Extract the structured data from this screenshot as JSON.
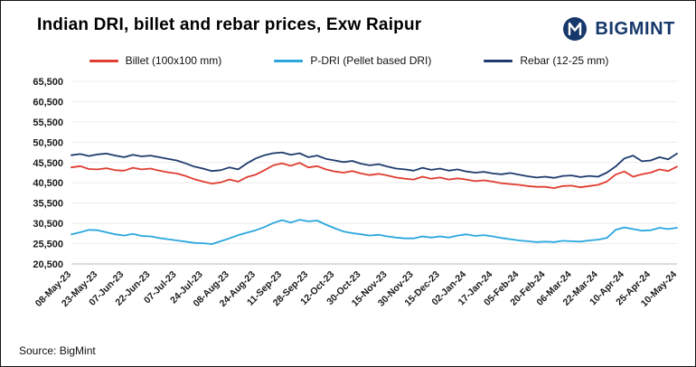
{
  "header": {
    "title": "Indian DRI, billet and rebar prices, Exw Raipur",
    "brand": "BIGMINT",
    "brand_color": "#17386b"
  },
  "legend": [
    {
      "label": "Billet (100x100 mm)",
      "color": "#e03c31"
    },
    {
      "label": "P-DRI (Pellet based DRI)",
      "color": "#2aa7de"
    },
    {
      "label": "Rebar (12-25 mm)",
      "color": "#1f3b6e"
    }
  ],
  "footer": {
    "source": "Source: BigMint"
  },
  "chart_data": {
    "type": "line",
    "title": "Indian DRI, billet and rebar prices, Exw Raipur",
    "xlabel": "",
    "ylabel": "",
    "ylim": [
      20500,
      65500
    ],
    "y_ticks": [
      20500,
      25500,
      30500,
      35500,
      40500,
      45500,
      50500,
      55500,
      60500,
      65500
    ],
    "grid": true,
    "legend_position": "top",
    "x_tick_labels": [
      "08-May-23",
      "23-May-23",
      "07-Jun-23",
      "22-Jun-23",
      "07-Jul-23",
      "24-Jul-23",
      "08-Aug-23",
      "24-Aug-23",
      "11-Sep-23",
      "28-Sep-23",
      "12-Oct-23",
      "30-Oct-23",
      "15-Nov-23",
      "30-Nov-23",
      "15-Dec-23",
      "02-Jan-24",
      "17-Jan-24",
      "05-Feb-24",
      "20-Feb-24",
      "06-Mar-24",
      "22-Mar-24",
      "10-Apr-24",
      "25-Apr-24",
      "10-May-24"
    ],
    "series": [
      {
        "name": "Billet (100x100 mm)",
        "color": "#e03c31",
        "values": [
          44300,
          44600,
          43900,
          43800,
          44100,
          43600,
          43500,
          44200,
          43800,
          44000,
          43500,
          43100,
          42800,
          42200,
          41400,
          40800,
          40300,
          40600,
          41300,
          40800,
          41900,
          42500,
          43600,
          44800,
          45300,
          44700,
          45400,
          44300,
          44600,
          43800,
          43300,
          43000,
          43400,
          42800,
          42400,
          42700,
          42300,
          41800,
          41500,
          41300,
          42000,
          41500,
          41800,
          41300,
          41600,
          41300,
          40900,
          41100,
          40800,
          40400,
          40200,
          40000,
          39700,
          39500,
          39500,
          39200,
          39700,
          39800,
          39400,
          39700,
          40000,
          40800,
          42500,
          43300,
          42000,
          42600,
          43000,
          43800,
          43400,
          44500
        ]
      },
      {
        "name": "P-DRI (Pellet based DRI)",
        "color": "#2aa7de",
        "values": [
          27800,
          28300,
          28900,
          28800,
          28300,
          27800,
          27500,
          27900,
          27400,
          27300,
          26900,
          26600,
          26300,
          26000,
          25700,
          25600,
          25400,
          26100,
          26800,
          27600,
          28200,
          28800,
          29600,
          30600,
          31300,
          30700,
          31400,
          31000,
          31200,
          30200,
          29300,
          28500,
          28100,
          27800,
          27500,
          27700,
          27300,
          27000,
          26800,
          26800,
          27300,
          27000,
          27300,
          27000,
          27500,
          27800,
          27400,
          27600,
          27300,
          26900,
          26600,
          26300,
          26100,
          25900,
          26000,
          25900,
          26200,
          26100,
          26000,
          26300,
          26500,
          26900,
          28900,
          29500,
          29100,
          28700,
          28800,
          29400,
          29100,
          29400
        ]
      },
      {
        "name": "Rebar (12-25 mm)",
        "color": "#1f3b6e",
        "values": [
          47300,
          47600,
          47100,
          47500,
          47700,
          47200,
          46800,
          47400,
          47000,
          47200,
          46800,
          46400,
          46000,
          45300,
          44500,
          44000,
          43400,
          43600,
          44300,
          43800,
          45300,
          46500,
          47300,
          47800,
          48000,
          47400,
          47800,
          46800,
          47200,
          46400,
          46000,
          45600,
          45900,
          45200,
          44800,
          45100,
          44500,
          44000,
          43800,
          43500,
          44200,
          43700,
          44000,
          43500,
          43800,
          43300,
          43000,
          43200,
          42800,
          42600,
          42900,
          42500,
          42100,
          41800,
          42000,
          41700,
          42200,
          42300,
          41900,
          42200,
          42000,
          43000,
          44500,
          46500,
          47200,
          45800,
          46000,
          46800,
          46300,
          47700
        ]
      }
    ]
  }
}
